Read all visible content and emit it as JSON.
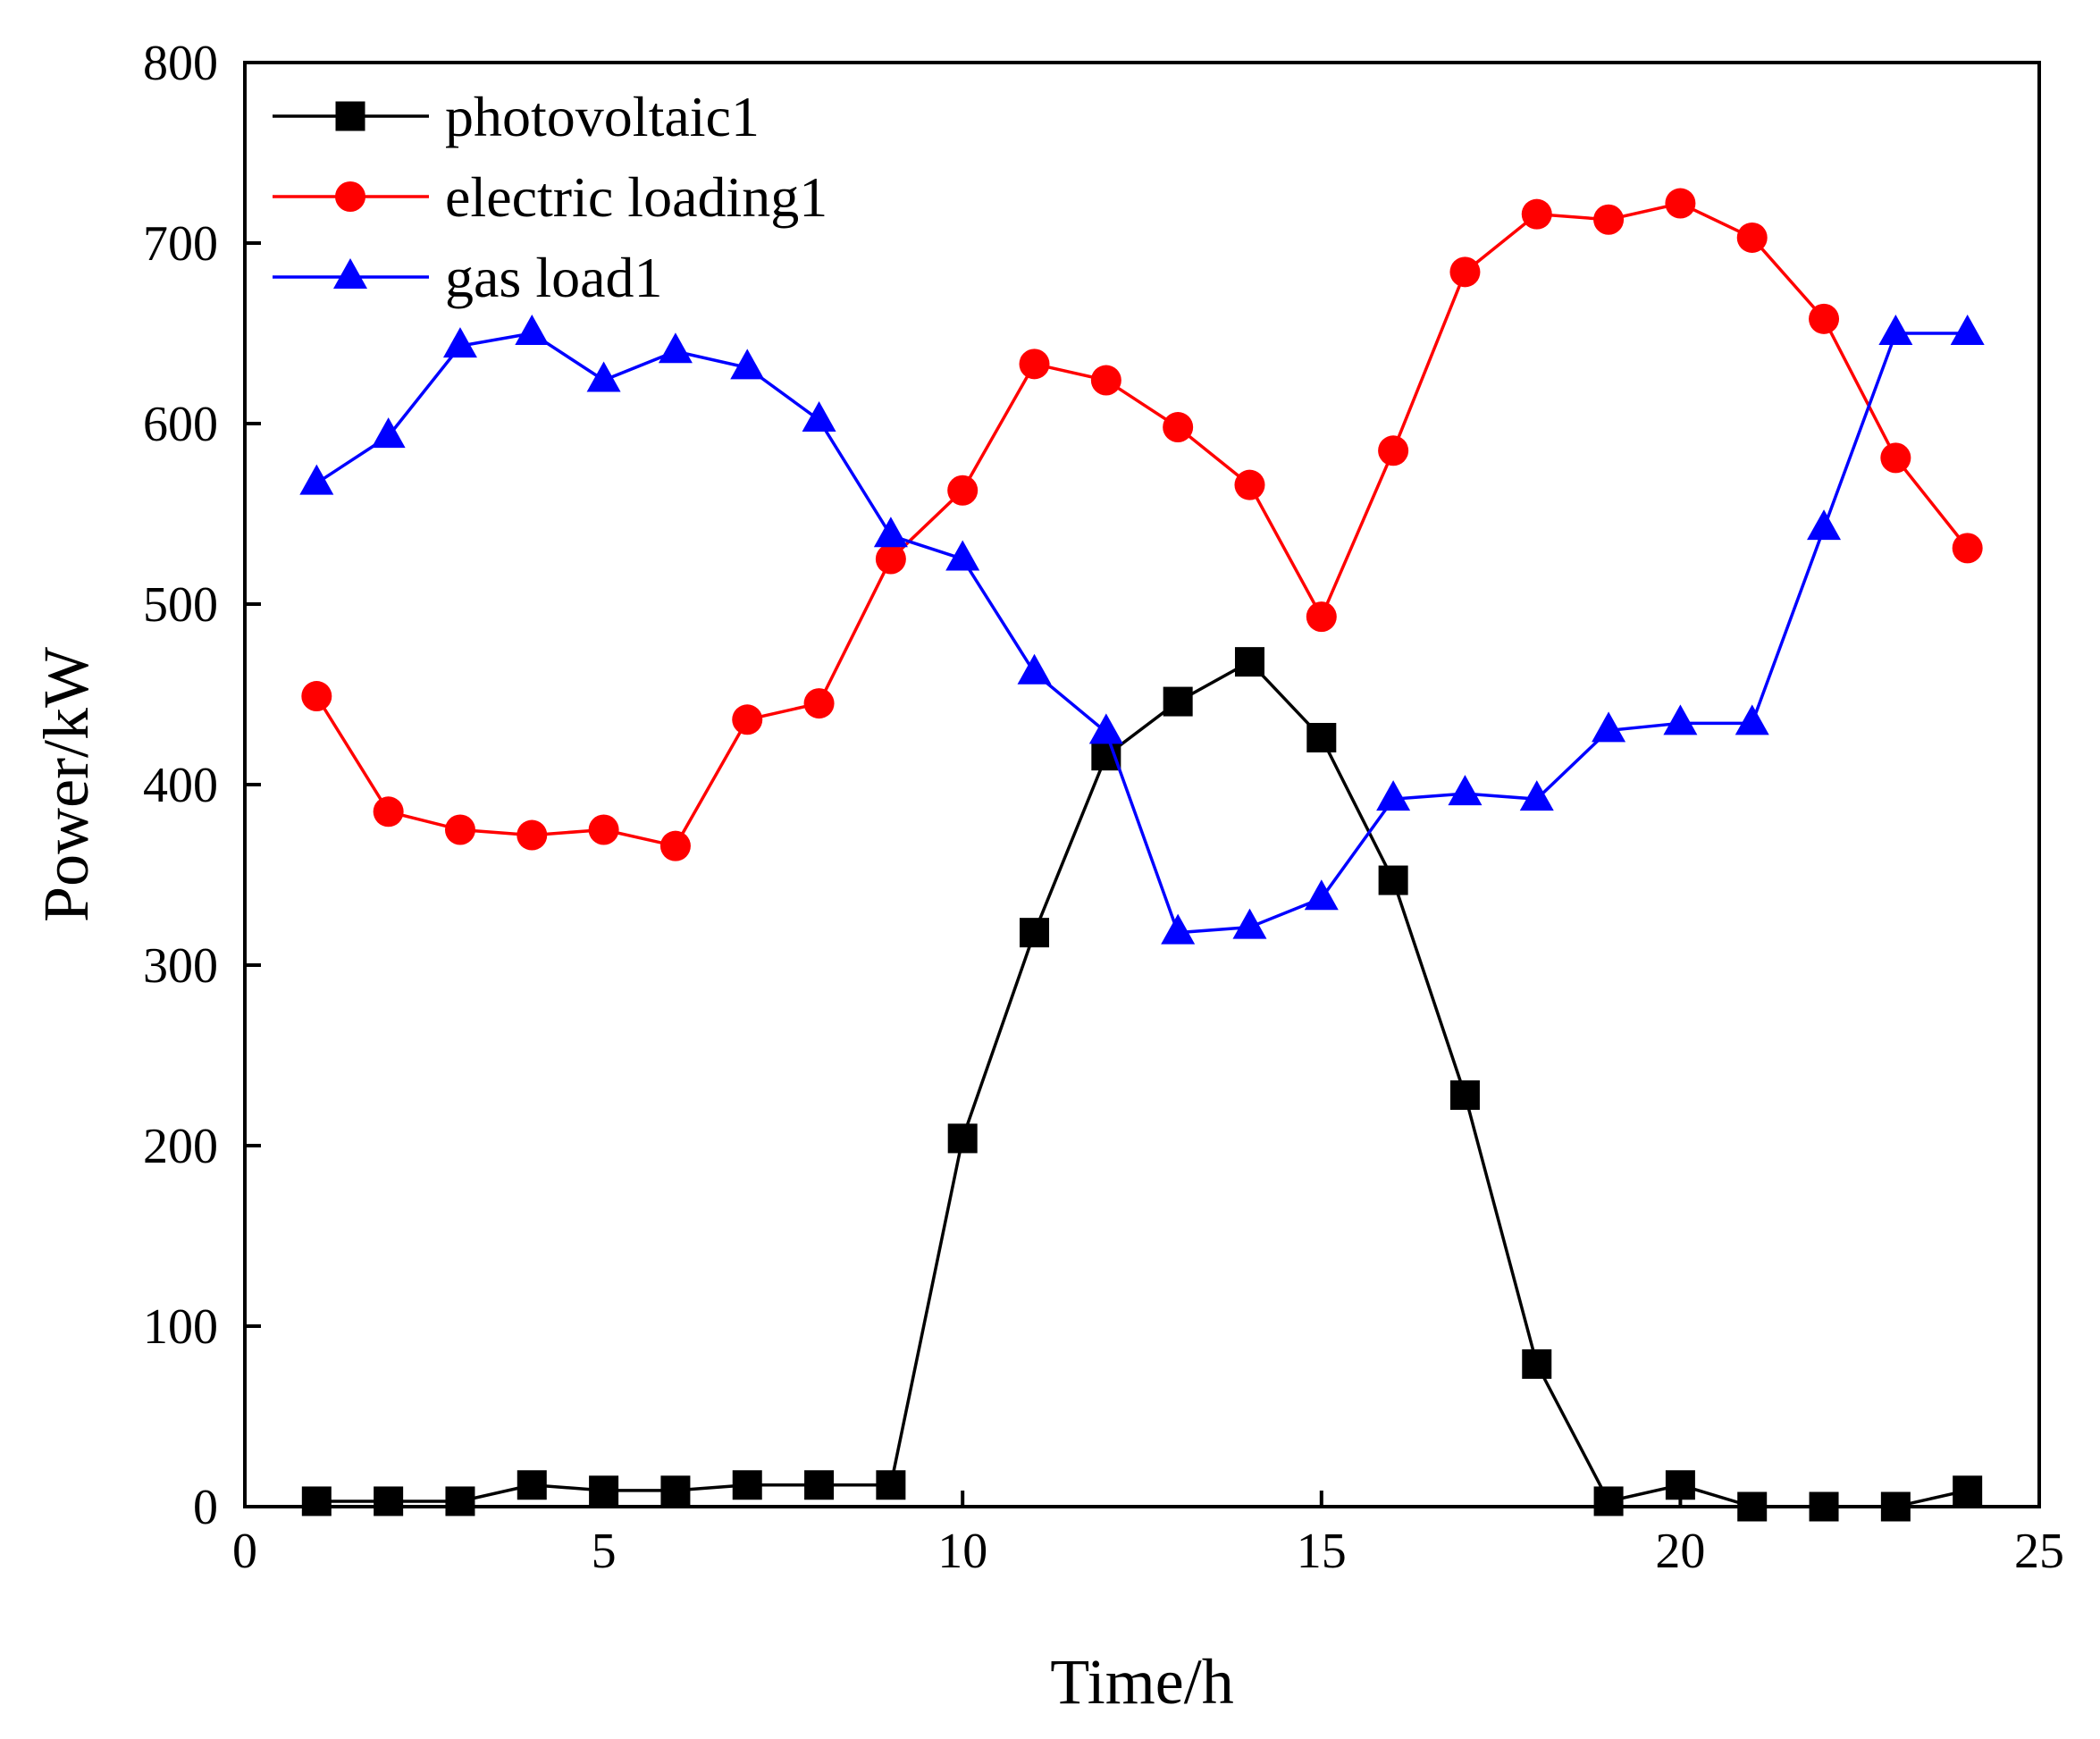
{
  "chart_data": {
    "type": "line",
    "title": "",
    "xlabel": "Time/h",
    "ylabel": "Power/kW",
    "xlim": [
      0,
      25
    ],
    "ylim": [
      0,
      800
    ],
    "xticks": [
      0,
      5,
      10,
      15,
      20,
      25
    ],
    "yticks": [
      0,
      100,
      200,
      300,
      400,
      500,
      600,
      700,
      800
    ],
    "grid": false,
    "legend_position": "top-left",
    "x": [
      1,
      2,
      3,
      4,
      5,
      6,
      7,
      8,
      9,
      10,
      11,
      12,
      13,
      14,
      15,
      16,
      17,
      18,
      19,
      20,
      21,
      22,
      23,
      24
    ],
    "series": [
      {
        "name": "photovoltaic1",
        "color": "#000000",
        "marker": "square",
        "values": [
          3,
          3,
          3,
          12,
          9,
          9,
          12,
          12,
          12,
          204,
          318,
          416,
          446,
          468,
          426,
          347,
          228,
          79,
          3,
          12,
          0,
          0,
          0,
          9
        ]
      },
      {
        "name": "electric loading1",
        "color": "#ff0000",
        "marker": "circle",
        "values": [
          449,
          385,
          375,
          372,
          375,
          366,
          436,
          445,
          525,
          563,
          633,
          624,
          598,
          566,
          493,
          585,
          684,
          716,
          713,
          722,
          703,
          658,
          581,
          531
        ]
      },
      {
        "name": "gas load1",
        "color": "#0000ff",
        "marker": "triangle",
        "values": [
          567,
          593,
          643,
          650,
          624,
          640,
          631,
          602,
          538,
          525,
          462,
          429,
          318,
          321,
          337,
          392,
          395,
          392,
          430,
          434,
          434,
          542,
          650,
          650
        ]
      }
    ]
  }
}
